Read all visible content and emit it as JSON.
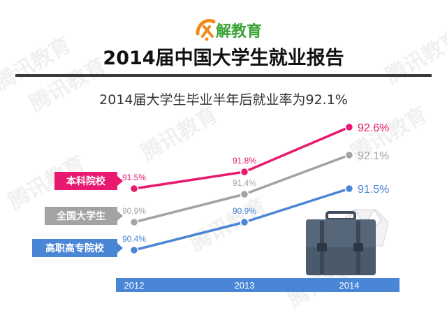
{
  "logo": {
    "text": "解教育"
  },
  "header": {
    "title": "2014届中国大学生就业报告",
    "subtitle": "2014届大学生毕业半年后就业率为92.1%"
  },
  "watermark": {
    "text": "腾讯教育"
  },
  "colors": {
    "undergrad": "#e8196e",
    "national": "#a3a3a3",
    "vocational": "#4a86d6",
    "axis_bar": "#4a86d6",
    "logo_orange": "#f08a1c",
    "logo_green": "#3aa335"
  },
  "chart_data": {
    "type": "line",
    "x": [
      "2012",
      "2013",
      "2014"
    ],
    "ylim": [
      90,
      93
    ],
    "series": [
      {
        "name": "本科院校",
        "values": [
          91.5,
          91.8,
          92.6
        ],
        "labels": [
          "91.5%",
          "91.8%",
          "92.6%"
        ],
        "color": "#e8196e"
      },
      {
        "name": "全国大学生",
        "values": [
          90.9,
          91.4,
          92.1
        ],
        "labels": [
          "90.9%",
          "91.4%",
          "92.1%"
        ],
        "color": "#a3a3a3"
      },
      {
        "name": "高职高专院校",
        "values": [
          90.4,
          90.9,
          91.5
        ],
        "labels": [
          "90.4%",
          "90.9%",
          "91.5%"
        ],
        "color": "#4a86d6"
      }
    ]
  },
  "icons": [
    "briefcase-icon",
    "shirt-tie-icon",
    "logo-icon"
  ]
}
